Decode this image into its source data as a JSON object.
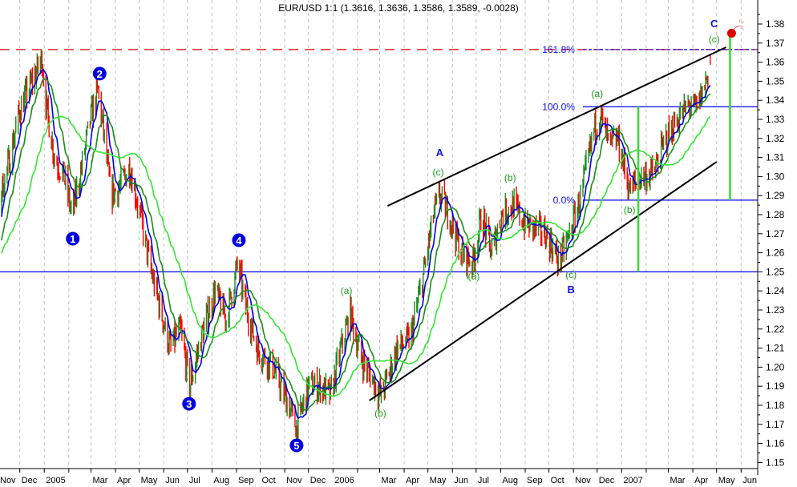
{
  "chart_data": {
    "type": "ohlc",
    "title": "EUR/USD 1:1 (1.3616, 1.3636, 1.3586, 1.3589, -0.0028)",
    "symbol": "EUR/USD",
    "last_bar": {
      "open": 1.3616,
      "high": 1.3636,
      "low": 1.3586,
      "close": 1.3589,
      "change": -0.0028
    },
    "xlim": [
      "2004-11-06",
      "2007-06-22"
    ],
    "ylim": [
      1.1468,
      1.3926
    ],
    "y_ticks": [
      "1.15",
      "1.16",
      "1.17",
      "1.18",
      "1.19",
      "1.20",
      "1.21",
      "1.22",
      "1.23",
      "1.24",
      "1.25",
      "1.26",
      "1.27",
      "1.28",
      "1.29",
      "1.30",
      "1.31",
      "1.32",
      "1.33",
      "1.34",
      "1.35",
      "1.36",
      "1.37",
      "1.38"
    ],
    "x_ticks": [
      {
        "date": "2004-11-01",
        "label": "Nov"
      },
      {
        "date": "2004-12-01",
        "label": "Dec"
      },
      {
        "date": "2005-01-01",
        "label": "2005"
      },
      {
        "date": "2005-02-01",
        "label": ""
      },
      {
        "date": "2005-03-01",
        "label": "Mar"
      },
      {
        "date": "2005-04-01",
        "label": "Apr"
      },
      {
        "date": "2005-05-01",
        "label": "May"
      },
      {
        "date": "2005-06-01",
        "label": "Jun"
      },
      {
        "date": "2005-07-01",
        "label": "Jul"
      },
      {
        "date": "2005-08-01",
        "label": "Aug"
      },
      {
        "date": "2005-09-01",
        "label": "Sep"
      },
      {
        "date": "2005-10-01",
        "label": "Oct"
      },
      {
        "date": "2005-11-01",
        "label": "Nov"
      },
      {
        "date": "2005-12-01",
        "label": "Dec"
      },
      {
        "date": "2006-01-01",
        "label": "2006"
      },
      {
        "date": "2006-02-01",
        "label": ""
      },
      {
        "date": "2006-03-01",
        "label": "Mar"
      },
      {
        "date": "2006-04-01",
        "label": "Apr"
      },
      {
        "date": "2006-05-01",
        "label": "May"
      },
      {
        "date": "2006-06-01",
        "label": "Jun"
      },
      {
        "date": "2006-07-01",
        "label": "Jul"
      },
      {
        "date": "2006-08-01",
        "label": "Aug"
      },
      {
        "date": "2006-09-01",
        "label": "Sep"
      },
      {
        "date": "2006-10-01",
        "label": "Oct"
      },
      {
        "date": "2006-11-01",
        "label": "Nov"
      },
      {
        "date": "2006-12-01",
        "label": "Dec"
      },
      {
        "date": "2007-01-01",
        "label": "2007"
      },
      {
        "date": "2007-02-01",
        "label": ""
      },
      {
        "date": "2007-03-01",
        "label": "Mar"
      },
      {
        "date": "2007-04-01",
        "label": "Apr"
      },
      {
        "date": "2007-05-01",
        "label": "May"
      },
      {
        "date": "2007-06-01",
        "label": "Jun"
      }
    ],
    "grid": {
      "vertical": true,
      "style": "dashed",
      "color": "#c0c0c0"
    },
    "colors": {
      "up": "#1e8c1e",
      "down": "#ff0000",
      "ma_fast": "#0000e0",
      "ma_mid": "#1a8c1a",
      "ma_slow": "#33e633",
      "level": "#0000e0",
      "resistance": "#e00000",
      "trend": "#000000",
      "target": "#33dd33"
    },
    "price_path": [
      [
        "2004-10-01",
        1.235
      ],
      [
        "2004-10-20",
        1.255
      ],
      [
        "2004-11-06",
        1.29
      ],
      [
        "2004-11-16",
        1.305
      ],
      [
        "2004-12-01",
        1.335
      ],
      [
        "2004-12-22",
        1.355
      ],
      [
        "2004-12-29",
        1.362
      ],
      [
        "2005-01-04",
        1.335
      ],
      [
        "2005-01-14",
        1.31
      ],
      [
        "2005-01-26",
        1.3
      ],
      [
        "2005-02-05",
        1.28
      ],
      [
        "2005-02-15",
        1.3
      ],
      [
        "2005-02-28",
        1.33
      ],
      [
        "2005-03-10",
        1.345
      ],
      [
        "2005-03-18",
        1.32
      ],
      [
        "2005-03-26",
        1.29
      ],
      [
        "2005-04-07",
        1.295
      ],
      [
        "2005-04-19",
        1.305
      ],
      [
        "2005-05-02",
        1.28
      ],
      [
        "2005-05-16",
        1.25
      ],
      [
        "2005-05-28",
        1.23
      ],
      [
        "2005-06-09",
        1.21
      ],
      [
        "2005-06-22",
        1.22
      ],
      [
        "2005-07-04",
        1.19
      ],
      [
        "2005-07-18",
        1.215
      ],
      [
        "2005-08-05",
        1.24
      ],
      [
        "2005-08-19",
        1.225
      ],
      [
        "2005-09-03",
        1.255
      ],
      [
        "2005-09-11",
        1.235
      ],
      [
        "2005-09-27",
        1.21
      ],
      [
        "2005-10-17",
        1.2
      ],
      [
        "2005-11-06",
        1.18
      ],
      [
        "2005-11-16",
        1.168
      ],
      [
        "2005-12-01",
        1.19
      ],
      [
        "2005-12-17",
        1.19
      ],
      [
        "2005-12-29",
        1.185
      ],
      [
        "2006-01-11",
        1.21
      ],
      [
        "2006-01-23",
        1.228
      ],
      [
        "2006-02-05",
        1.205
      ],
      [
        "2006-02-18",
        1.195
      ],
      [
        "2006-03-03",
        1.185
      ],
      [
        "2006-03-23",
        1.21
      ],
      [
        "2006-04-09",
        1.215
      ],
      [
        "2006-04-26",
        1.25
      ],
      [
        "2006-05-08",
        1.28
      ],
      [
        "2006-05-16",
        1.29
      ],
      [
        "2006-05-28",
        1.28
      ],
      [
        "2006-06-12",
        1.26
      ],
      [
        "2006-06-27",
        1.255
      ],
      [
        "2006-07-08",
        1.28
      ],
      [
        "2006-07-20",
        1.26
      ],
      [
        "2006-08-02",
        1.28
      ],
      [
        "2006-08-17",
        1.285
      ],
      [
        "2006-09-01",
        1.275
      ],
      [
        "2006-09-27",
        1.27
      ],
      [
        "2006-10-14",
        1.255
      ],
      [
        "2006-10-27",
        1.27
      ],
      [
        "2006-11-11",
        1.29
      ],
      [
        "2006-11-27",
        1.325
      ],
      [
        "2006-12-05",
        1.332
      ],
      [
        "2006-12-17",
        1.315
      ],
      [
        "2006-12-27",
        1.32
      ],
      [
        "2007-01-11",
        1.293
      ],
      [
        "2007-01-26",
        1.3
      ],
      [
        "2007-02-11",
        1.302
      ],
      [
        "2007-02-26",
        1.32
      ],
      [
        "2007-03-13",
        1.33
      ],
      [
        "2007-03-28",
        1.338
      ],
      [
        "2007-04-05",
        1.335
      ],
      [
        "2007-04-14",
        1.345
      ],
      [
        "2007-04-23",
        1.3589
      ]
    ],
    "levels": [
      {
        "name": "support-1.25",
        "price": 1.25,
        "from": "2004-11-06",
        "to": "2007-06-22",
        "style": "solid",
        "color": "#0000e0"
      },
      {
        "name": "resistance-high",
        "price": 1.3666,
        "from": "2004-11-06",
        "to": "2007-06-22",
        "style": "dashed",
        "color": "#e00000"
      },
      {
        "name": "fib-161.8",
        "price": 1.3666,
        "from": "2006-11-13",
        "to": "2007-06-22",
        "style": "dotted",
        "color": "#0000e0",
        "label": "161.8%"
      },
      {
        "name": "fib-100",
        "price": 1.3366,
        "from": "2006-11-13",
        "to": "2007-06-22",
        "style": "solid",
        "color": "#0000e0",
        "label": "100.0%"
      },
      {
        "name": "fib-0",
        "price": 1.2876,
        "from": "2006-11-13",
        "to": "2007-06-22",
        "style": "solid",
        "color": "#0000e0",
        "label": "0.0%"
      }
    ],
    "trendlines": [
      {
        "name": "upper-channel",
        "from": [
          "2006-03-11",
          1.2846
        ],
        "to": [
          "2007-05-13",
          1.3678
        ]
      },
      {
        "name": "lower-channel",
        "from": [
          "2006-02-16",
          1.1825
        ],
        "to": [
          "2007-05-01",
          1.3077
        ]
      }
    ],
    "target_bars": [
      {
        "name": "measure-1",
        "date": "2007-01-22",
        "from": 1.25,
        "to": 1.3366
      },
      {
        "name": "measure-2",
        "date": "2007-05-18",
        "from": 1.2876,
        "to": 1.3736
      }
    ],
    "marker": {
      "icon": "bomb-icon",
      "date": "2007-05-20",
      "price": 1.376
    },
    "wave_counts": [
      {
        "label": "1",
        "kind": "circle",
        "date": "2005-02-06",
        "price": 1.2674
      },
      {
        "label": "2",
        "kind": "circle",
        "date": "2005-03-12",
        "price": 1.354
      },
      {
        "label": "3",
        "kind": "circle",
        "date": "2005-07-03",
        "price": 1.1808
      },
      {
        "label": "4",
        "kind": "circle",
        "date": "2005-09-04",
        "price": 1.2666
      },
      {
        "label": "5",
        "kind": "circle",
        "date": "2005-11-16",
        "price": 1.159
      },
      {
        "label": "A",
        "kind": "letter",
        "date": "2006-05-16",
        "price": 1.3124
      },
      {
        "label": "B",
        "kind": "letter",
        "date": "2006-10-29",
        "price": 1.2405
      },
      {
        "label": "C",
        "kind": "letter",
        "date": "2007-04-28",
        "price": 1.38
      },
      {
        "label": "(a)",
        "kind": "sub",
        "date": "2006-01-18",
        "price": 1.24
      },
      {
        "label": "(b)",
        "kind": "sub",
        "date": "2006-03-02",
        "price": 1.1758
      },
      {
        "label": "(c)",
        "kind": "sub",
        "date": "2006-05-14",
        "price": 1.3022
      },
      {
        "label": "(a)",
        "kind": "sub",
        "date": "2006-06-28",
        "price": 1.2477
      },
      {
        "label": "(b)",
        "kind": "sub",
        "date": "2006-08-13",
        "price": 1.2993
      },
      {
        "label": "(c)",
        "kind": "sub",
        "date": "2006-10-29",
        "price": 1.2485
      },
      {
        "label": "(a)",
        "kind": "sub",
        "date": "2006-12-01",
        "price": 1.3434
      },
      {
        "label": "(b)",
        "kind": "sub",
        "date": "2007-01-11",
        "price": 1.2825
      },
      {
        "label": "(c)",
        "kind": "sub",
        "date": "2007-04-28",
        "price": 1.372
      }
    ]
  }
}
